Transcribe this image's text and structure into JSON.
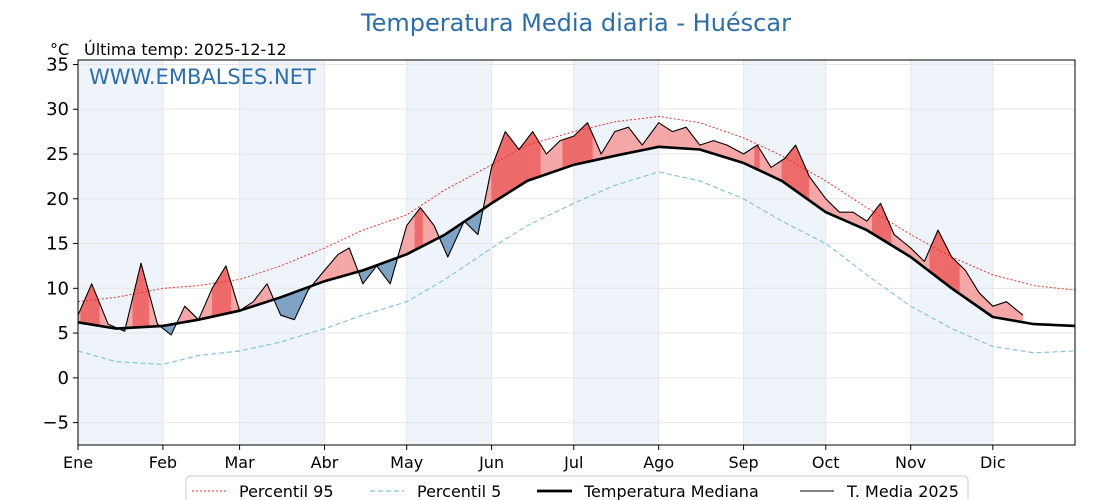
{
  "header": {
    "title": "Temperatura Media diaria - Huéscar",
    "unit": "°C",
    "last_temp": "Última temp: 2025-12-12",
    "watermark": "WWW.EMBALSES.NET"
  },
  "chart_data": {
    "type": "line",
    "title": "Temperatura Media diaria - Huéscar",
    "ylabel": "°C",
    "ylim": [
      -7.5,
      35.5
    ],
    "yticks": [
      -5,
      0,
      5,
      10,
      15,
      20,
      25,
      30,
      35
    ],
    "ytick_labels": [
      "−5",
      "0",
      "5",
      "10",
      "15",
      "20",
      "25",
      "30",
      "35"
    ],
    "xlim_days": [
      1,
      365
    ],
    "months": [
      {
        "label": "Ene",
        "start_day": 1
      },
      {
        "label": "Feb",
        "start_day": 32
      },
      {
        "label": "Mar",
        "start_day": 60
      },
      {
        "label": "Abr",
        "start_day": 91
      },
      {
        "label": "May",
        "start_day": 121
      },
      {
        "label": "Jun",
        "start_day": 152
      },
      {
        "label": "Jul",
        "start_day": 182
      },
      {
        "label": "Ago",
        "start_day": 213
      },
      {
        "label": "Sep",
        "start_day": 244
      },
      {
        "label": "Oct",
        "start_day": 274
      },
      {
        "label": "Nov",
        "start_day": 305
      },
      {
        "label": "Dic",
        "start_day": 335
      }
    ],
    "grid": true,
    "legend_position": "bottom-center",
    "colors": {
      "p95": "#e8312b",
      "p5": "#87c4dc",
      "median": "#000000",
      "current": "#000000",
      "above_fill": "#f4a7a7",
      "above_strong": "#ee6b6b",
      "below_fill": "#7ea3c4",
      "shade": "#eef4fa"
    },
    "series": [
      {
        "name": "Percentil 95",
        "key": "p95",
        "style": "dotted",
        "x": [
          1,
          15,
          32,
          45,
          60,
          75,
          91,
          105,
          121,
          135,
          152,
          165,
          182,
          197,
          213,
          228,
          244,
          258,
          274,
          289,
          305,
          320,
          335,
          350,
          365
        ],
        "y": [
          8.5,
          9.0,
          10.0,
          10.3,
          11.0,
          12.5,
          14.5,
          16.5,
          18.2,
          21.0,
          23.8,
          26.0,
          27.5,
          28.6,
          29.2,
          28.5,
          26.8,
          24.8,
          22.0,
          19.0,
          16.0,
          13.5,
          11.5,
          10.3,
          9.8
        ]
      },
      {
        "name": "Percentil 5",
        "key": "p5",
        "style": "dashed",
        "x": [
          1,
          15,
          32,
          45,
          60,
          75,
          91,
          105,
          121,
          135,
          152,
          165,
          182,
          197,
          213,
          228,
          244,
          258,
          274,
          289,
          305,
          320,
          335,
          350,
          365
        ],
        "y": [
          3.0,
          1.8,
          1.5,
          2.5,
          3.0,
          4.0,
          5.5,
          7.0,
          8.5,
          11.0,
          14.5,
          17.0,
          19.5,
          21.5,
          23.0,
          22.0,
          20.0,
          17.5,
          15.0,
          11.5,
          8.0,
          5.5,
          3.5,
          2.8,
          3.0
        ]
      },
      {
        "name": "Temperatura Mediana",
        "key": "median",
        "style": "thick",
        "x": [
          1,
          15,
          32,
          45,
          60,
          75,
          91,
          105,
          121,
          135,
          152,
          165,
          182,
          197,
          213,
          228,
          244,
          258,
          274,
          289,
          305,
          320,
          335,
          350,
          365
        ],
        "y": [
          6.2,
          5.5,
          5.8,
          6.5,
          7.5,
          9.0,
          10.8,
          12.0,
          13.8,
          16.0,
          19.5,
          22.0,
          23.8,
          24.8,
          25.8,
          25.5,
          24.0,
          22.0,
          18.5,
          16.5,
          13.5,
          10.0,
          6.8,
          6.0,
          5.8
        ]
      },
      {
        "name": "T. Media 2025",
        "key": "current",
        "style": "thin",
        "x": [
          1,
          6,
          12,
          18,
          24,
          30,
          35,
          40,
          45,
          50,
          55,
          60,
          65,
          70,
          75,
          80,
          85,
          91,
          96,
          100,
          105,
          110,
          115,
          121,
          126,
          131,
          136,
          142,
          147,
          152,
          157,
          162,
          167,
          172,
          177,
          182,
          187,
          192,
          197,
          202,
          207,
          213,
          218,
          223,
          228,
          233,
          238,
          244,
          249,
          254,
          259,
          263,
          268,
          274,
          279,
          284,
          289,
          294,
          299,
          305,
          310,
          315,
          320,
          325,
          330,
          335,
          340,
          346
        ],
        "y": [
          7.0,
          10.5,
          6.0,
          5.2,
          12.8,
          6.0,
          4.8,
          8.0,
          6.5,
          10.0,
          12.5,
          7.5,
          8.5,
          10.5,
          7.0,
          6.5,
          9.8,
          12.0,
          13.8,
          14.5,
          10.5,
          12.5,
          10.5,
          17.0,
          19.0,
          17.0,
          13.5,
          17.5,
          16.0,
          23.5,
          27.5,
          25.5,
          27.5,
          25.0,
          26.5,
          27.0,
          28.5,
          25.0,
          27.5,
          28.0,
          26.0,
          28.5,
          27.5,
          28.0,
          26.0,
          26.5,
          26.0,
          25.0,
          26.0,
          23.5,
          24.5,
          26.0,
          22.5,
          20.0,
          18.5,
          18.5,
          17.5,
          19.5,
          16.0,
          14.5,
          13.0,
          16.5,
          13.5,
          12.0,
          9.5,
          8.0,
          8.5,
          7.0
        ]
      }
    ]
  },
  "legend": {
    "items": [
      {
        "label": "Percentil 95"
      },
      {
        "label": "Percentil 5"
      },
      {
        "label": "Temperatura Mediana"
      },
      {
        "label": "T. Media 2025"
      }
    ]
  }
}
